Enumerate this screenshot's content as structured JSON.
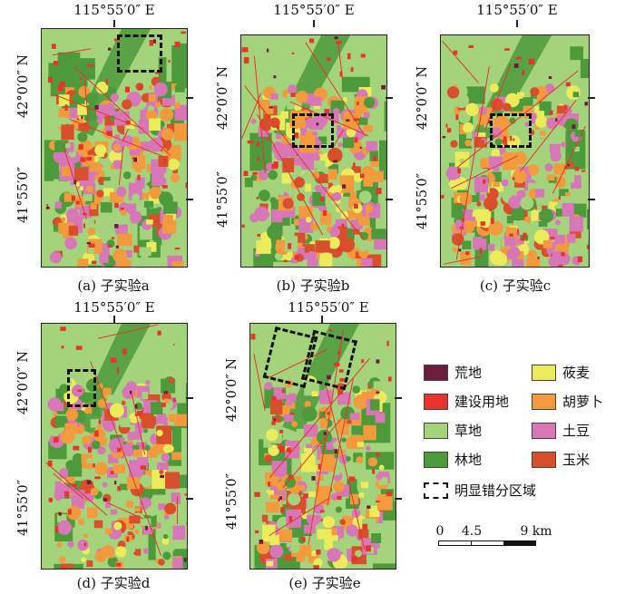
{
  "axes": {
    "lon_label": "115°55′0″ E",
    "lat_top": "42°0′0″ N",
    "lat_bottom": "41°55′0″"
  },
  "panels": [
    {
      "id": "a",
      "caption": "(a) 子实验a"
    },
    {
      "id": "b",
      "caption": "(b) 子实验b"
    },
    {
      "id": "c",
      "caption": "(c) 子实验c"
    },
    {
      "id": "d",
      "caption": "(d) 子实验d"
    },
    {
      "id": "e",
      "caption": "(e) 子实验e"
    }
  ],
  "legend": [
    {
      "label": "荒地",
      "color": "#6b1d3c"
    },
    {
      "label": "莜麦",
      "color": "#ecec5a"
    },
    {
      "label": "建设用地",
      "color": "#e8342b"
    },
    {
      "label": "胡萝卜",
      "color": "#f39a3d"
    },
    {
      "label": "草地",
      "color": "#a3d37a"
    },
    {
      "label": "土豆",
      "color": "#d777b8"
    },
    {
      "label": "林地",
      "color": "#4d9a3b"
    },
    {
      "label": "玉米",
      "color": "#d84f2c"
    },
    {
      "label": "明显错分区域",
      "color": "#111111",
      "dashed": true
    }
  ],
  "scale": {
    "labels": [
      "0",
      "4.5",
      "9 km"
    ]
  }
}
